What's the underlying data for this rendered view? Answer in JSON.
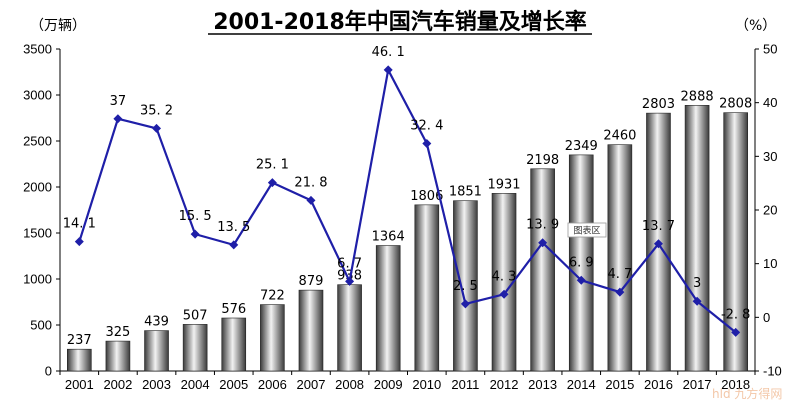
{
  "chart_data": {
    "type": "bar",
    "title": "2001-2018年中国汽车销量及增长率",
    "left_unit": "（万辆）",
    "right_unit": "（%）",
    "categories": [
      "2001",
      "2002",
      "2003",
      "2004",
      "2005",
      "2006",
      "2007",
      "2008",
      "2009",
      "2010",
      "2011",
      "2012",
      "2013",
      "2014",
      "2015",
      "2016",
      "2017",
      "2018"
    ],
    "series": [
      {
        "type": "bar",
        "axis": "left",
        "values": [
          237,
          325,
          439,
          507,
          576,
          722,
          879,
          938,
          1364,
          1806,
          1851,
          1931,
          2198,
          2349,
          2460,
          2803,
          2888,
          2808
        ],
        "labels": [
          "237",
          "325",
          "439",
          "507",
          "576",
          "722",
          "879",
          "938",
          "1364",
          "1806",
          "1851",
          "1931",
          "2198",
          "2349",
          "2460",
          "2803",
          "2888",
          "2808"
        ]
      },
      {
        "type": "line",
        "axis": "right",
        "color": "#1f1fa8",
        "values": [
          14.1,
          37,
          35.2,
          15.5,
          13.5,
          25.1,
          21.8,
          6.7,
          46.1,
          32.4,
          2.5,
          4.3,
          13.9,
          6.9,
          4.7,
          13.7,
          3,
          -2.8
        ],
        "labels": [
          "14. 1",
          "37",
          "35. 2",
          "15. 5",
          "13. 5",
          "25. 1",
          "21. 8",
          "6. 7",
          "46. 1",
          "32. 4",
          "2. 5",
          "4. 3",
          "13. 9",
          "6. 9",
          "4. 7",
          "13. 7",
          "3",
          "-2. 8"
        ]
      }
    ],
    "left_axis": {
      "min": 0,
      "max": 3500,
      "step": 500
    },
    "right_axis": {
      "min": -10,
      "max": 50,
      "step": 10
    },
    "grid": false
  },
  "overlay_tag": "图表区",
  "watermark": "hld 九方得网"
}
